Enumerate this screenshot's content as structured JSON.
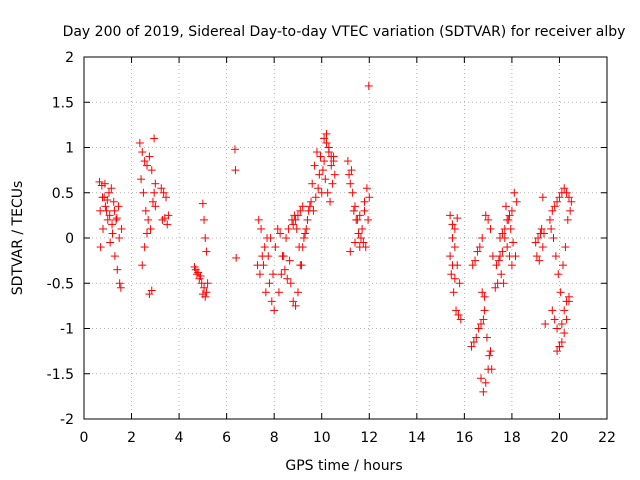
{
  "chart_data": {
    "type": "scatter",
    "title": "Day 200 of 2019, Sidereal Day-to-day VTEC variation (SDTVAR) for receiver alby",
    "xlabel": "GPS time / hours",
    "ylabel": "SDTVAR / TECUs",
    "xlim": [
      0,
      22
    ],
    "ylim": [
      -2,
      2
    ],
    "x_ticks": [
      "0",
      "2",
      "4",
      "6",
      "8",
      "10",
      "12",
      "14",
      "16",
      "18",
      "20",
      "22"
    ],
    "y_ticks": [
      "-2",
      "-1.5",
      "-1",
      "-0.5",
      "0",
      "0.5",
      "1",
      "1.5",
      "2"
    ],
    "grid": true,
    "marker": "+",
    "marker_color": "#ff0000",
    "series": [
      {
        "name": "SDTVAR",
        "x": [
          0.65,
          0.75,
          0.85,
          0.95,
          1.05,
          1.15,
          1.25,
          1.35,
          1.45,
          0.7,
          0.8,
          0.9,
          1.0,
          1.1,
          1.2,
          1.3,
          1.4,
          1.5,
          1.55,
          0.68,
          0.78,
          0.88,
          0.98,
          1.08,
          1.18,
          1.28,
          1.38,
          1.48,
          1.58,
          2.35,
          2.45,
          2.55,
          2.65,
          2.75,
          2.85,
          2.95,
          3.0,
          2.4,
          2.5,
          2.6,
          2.7,
          2.8,
          2.9,
          3.0,
          2.45,
          2.55,
          2.65,
          2.75,
          2.85,
          2.95,
          3.25,
          3.35,
          3.45,
          3.55,
          3.3,
          3.4,
          3.5,
          4.65,
          4.75,
          4.85,
          4.95,
          5.05,
          5.15,
          4.7,
          4.8,
          4.9,
          5.0,
          5.1,
          5.2,
          5.0,
          5.05,
          5.1,
          5.15,
          6.35,
          6.37,
          6.4,
          7.3,
          7.4,
          7.5,
          7.6,
          7.7,
          7.8,
          7.9,
          8.0,
          7.35,
          7.45,
          7.55,
          7.65,
          7.75,
          7.85,
          7.95,
          8.05,
          8.15,
          8.25,
          8.35,
          8.45,
          8.55,
          8.65,
          8.75,
          8.85,
          8.95,
          9.05,
          9.15,
          9.25,
          9.35,
          9.45,
          9.55,
          8.2,
          8.3,
          8.4,
          8.5,
          8.6,
          8.7,
          8.8,
          8.9,
          9.0,
          9.1,
          9.2,
          9.3,
          9.4,
          9.5,
          8.8,
          8.9,
          9.0,
          9.1,
          9.2,
          9.6,
          9.7,
          9.8,
          9.9,
          10.0,
          10.1,
          10.2,
          10.3,
          10.4,
          10.5,
          9.65,
          9.75,
          9.85,
          9.95,
          10.05,
          10.15,
          10.25,
          10.35,
          10.45,
          10.55,
          10.1,
          10.2,
          10.3,
          10.4,
          10.5,
          11.1,
          11.2,
          11.3,
          11.4,
          11.5,
          11.6,
          11.7,
          11.8,
          11.9,
          12.0,
          11.15,
          11.25,
          11.35,
          11.45,
          11.55,
          11.65,
          11.75,
          11.85,
          11.95,
          11.2,
          11.4,
          11.6,
          11.8,
          11.98,
          15.4,
          15.5,
          15.6,
          15.7,
          15.8,
          15.45,
          15.55,
          15.65,
          15.75,
          15.85,
          15.5,
          15.6,
          15.7,
          15.4,
          15.5,
          15.6,
          16.3,
          16.4,
          16.5,
          16.6,
          16.7,
          16.8,
          16.9,
          17.0,
          17.1,
          17.2,
          16.35,
          16.45,
          16.55,
          16.65,
          16.75,
          16.85,
          16.95,
          17.05,
          17.15,
          16.7,
          16.8,
          16.9,
          17.0,
          17.1,
          16.75,
          16.85,
          17.3,
          17.4,
          17.5,
          17.6,
          17.7,
          17.8,
          17.9,
          18.0,
          18.1,
          18.2,
          17.35,
          17.45,
          17.55,
          17.65,
          17.75,
          17.85,
          17.95,
          18.05,
          18.15,
          17.5,
          17.6,
          17.7,
          17.8,
          17.9,
          18.0,
          19.0,
          19.1,
          19.2,
          19.3,
          19.4,
          19.05,
          19.15,
          19.25,
          19.35,
          19.3,
          19.6,
          19.7,
          19.8,
          19.9,
          20.0,
          20.1,
          20.2,
          20.3,
          20.4,
          20.5,
          19.65,
          19.75,
          19.85,
          19.95,
          20.05,
          20.15,
          20.25,
          20.35,
          20.45,
          19.7,
          19.8,
          19.9,
          20.0,
          20.1,
          20.2,
          20.3,
          20.4,
          19.9,
          20.0,
          20.1,
          20.2,
          20.3,
          20.4
        ],
        "y": [
          0.62,
          0.58,
          0.45,
          0.3,
          0.5,
          0.55,
          0.4,
          0.2,
          0.35,
          -0.1,
          0.1,
          0.35,
          0.2,
          -0.05,
          0.05,
          -0.2,
          -0.35,
          -0.5,
          -0.55,
          0.3,
          0.45,
          0.6,
          0.42,
          0.25,
          0.15,
          0.3,
          0.22,
          0.0,
          0.1,
          1.05,
          0.95,
          0.85,
          0.8,
          0.9,
          0.75,
          1.1,
          0.6,
          0.65,
          0.5,
          0.3,
          0.2,
          0.1,
          0.4,
          0.35,
          -0.3,
          -0.1,
          0.05,
          -0.62,
          -0.58,
          0.5,
          0.55,
          0.5,
          0.45,
          0.25,
          0.2,
          0.22,
          0.15,
          -0.32,
          -0.4,
          -0.45,
          -0.5,
          -0.55,
          -0.6,
          -0.35,
          -0.38,
          -0.42,
          -0.62,
          -0.65,
          -0.5,
          0.38,
          0.2,
          0.0,
          -0.15,
          0.98,
          0.75,
          -0.22,
          -0.3,
          -0.4,
          -0.2,
          -0.1,
          0.0,
          -0.5,
          -0.7,
          -0.8,
          0.2,
          0.1,
          -0.3,
          -0.6,
          -0.2,
          0.0,
          -0.4,
          -0.1,
          0.1,
          0.05,
          -0.2,
          -0.35,
          -0.45,
          -0.25,
          0.2,
          0.25,
          0.1,
          -0.1,
          -0.3,
          0.0,
          0.1,
          0.3,
          0.4,
          -0.6,
          -0.4,
          -0.2,
          0.0,
          0.1,
          -0.5,
          -0.7,
          -0.75,
          -0.6,
          -0.3,
          -0.1,
          0.05,
          0.2,
          0.35,
          0.15,
          0.2,
          0.25,
          0.3,
          0.35,
          0.6,
          0.8,
          0.95,
          0.7,
          0.5,
          1.1,
          1.15,
          1.0,
          0.9,
          0.85,
          0.3,
          0.45,
          0.55,
          0.9,
          0.75,
          0.65,
          0.5,
          0.4,
          0.6,
          0.7,
          0.85,
          1.05,
          0.95,
          0.8,
          0.9,
          0.85,
          0.6,
          0.5,
          0.35,
          0.2,
          -0.1,
          0.1,
          0.3,
          0.55,
          0.45,
          0.7,
          0.75,
          0.3,
          0.2,
          0.05,
          0.0,
          -0.05,
          -0.1,
          0.2,
          -0.15,
          -0.05,
          0.25,
          0.4,
          1.68,
          0.25,
          0.15,
          0.1,
          -0.3,
          -0.5,
          -0.4,
          -0.6,
          -0.8,
          -0.85,
          -0.9,
          0.0,
          -0.1,
          0.22,
          -0.2,
          -0.3,
          -0.45,
          -1.2,
          -1.15,
          -1.1,
          -1.0,
          -0.95,
          -0.9,
          0.25,
          0.2,
          0.1,
          -0.2,
          -0.3,
          -0.25,
          -0.15,
          -0.1,
          0.0,
          -0.8,
          -1.1,
          -1.3,
          -1.45,
          -1.55,
          -1.7,
          -1.6,
          -1.45,
          -1.25,
          -0.6,
          -0.65,
          -0.55,
          -0.5,
          -0.2,
          -0.15,
          0.0,
          0.2,
          0.25,
          0.3,
          0.5,
          0.4,
          -0.3,
          -0.25,
          -0.4,
          -0.5,
          0.35,
          0.2,
          0.1,
          -0.05,
          -0.2,
          0.0,
          0.05,
          0.1,
          -0.1,
          -0.2,
          -0.3,
          -0.05,
          0.0,
          0.05,
          -0.1,
          -0.95,
          -0.2,
          -0.25,
          0.1,
          0.05,
          0.45,
          0.2,
          0.3,
          0.35,
          0.4,
          0.45,
          0.5,
          0.55,
          0.5,
          0.45,
          0.4,
          0.1,
          0.0,
          -0.2,
          -0.4,
          -0.6,
          -0.3,
          -0.1,
          0.2,
          0.3,
          -0.8,
          -0.9,
          -1.0,
          -1.2,
          -1.15,
          -1.05,
          -0.9,
          -0.7,
          -1.25,
          -1.2,
          -0.95,
          -0.8,
          -0.7,
          -0.65
        ]
      }
    ]
  }
}
